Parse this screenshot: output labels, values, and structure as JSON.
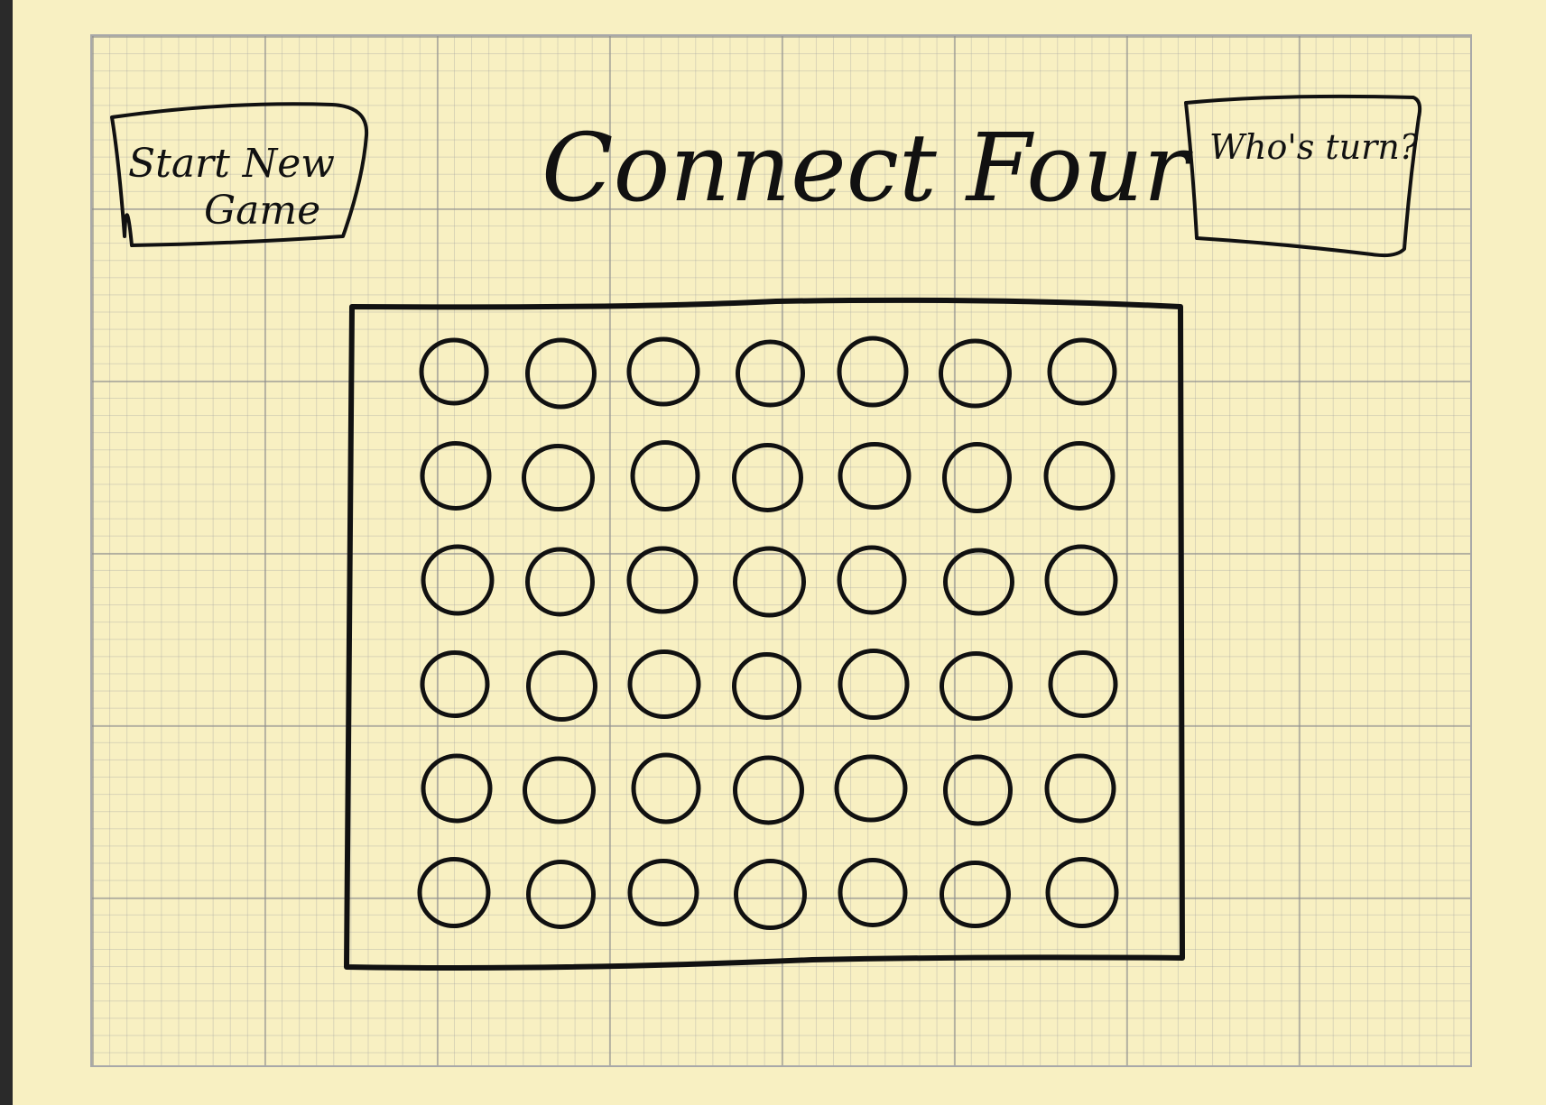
{
  "title": "Connect Four",
  "start_button": {
    "line1": "Start New",
    "line2": "Game"
  },
  "turn_indicator": {
    "label": "Who's turn?"
  },
  "board": {
    "rows": 6,
    "columns": 7
  },
  "colors": {
    "paper": "#f8f0c2",
    "ink": "#111111",
    "grid": "#a8a8a8",
    "surround": "#2a2a2a"
  }
}
